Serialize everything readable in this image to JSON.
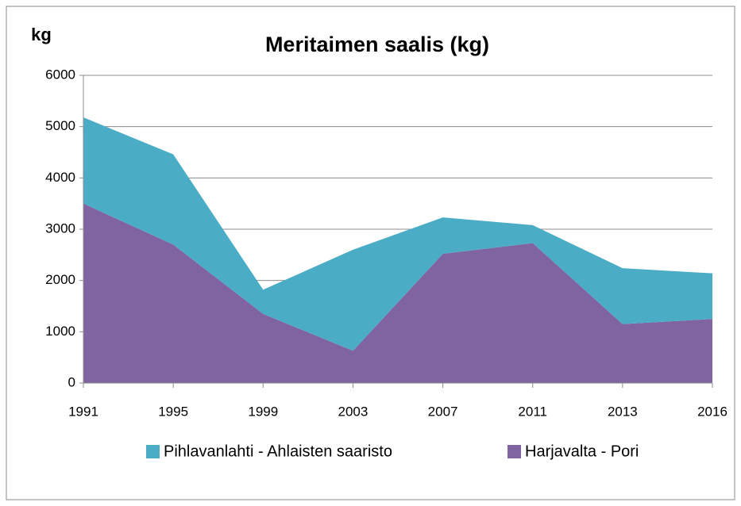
{
  "chart_data": {
    "type": "stacked_area",
    "title": "Meritaimen saalis (kg)",
    "y_label": "kg",
    "categories": [
      "1991",
      "1995",
      "1999",
      "2003",
      "2007",
      "2011",
      "2013",
      "2016"
    ],
    "series": [
      {
        "name": "Pihlavanlahti - Ahlaisten saaristo",
        "color": "#4bacc6",
        "values": [
          1680,
          1760,
          470,
          1970,
          710,
          350,
          1090,
          890
        ]
      },
      {
        "name": "Harjavalta - Pori",
        "color": "#8064a2",
        "values": [
          3500,
          2700,
          1350,
          630,
          2520,
          2730,
          1150,
          1250
        ]
      }
    ],
    "ylim": [
      0,
      6000
    ],
    "yticks": [
      0,
      1000,
      2000,
      3000,
      4000,
      5000,
      6000
    ],
    "grid": true,
    "legend": "bottom"
  }
}
